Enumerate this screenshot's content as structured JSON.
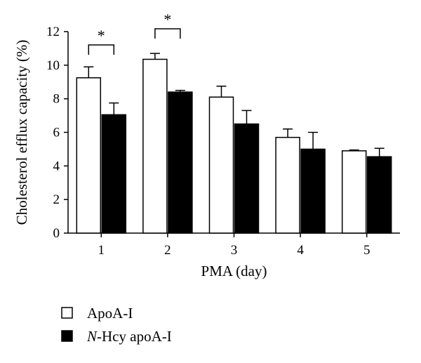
{
  "chart_data": {
    "type": "bar",
    "categories": [
      "1",
      "2",
      "3",
      "4",
      "5"
    ],
    "series": [
      {
        "name": "ApoA-I",
        "values": [
          9.25,
          10.35,
          8.1,
          5.7,
          4.9
        ],
        "errors": [
          0.65,
          0.35,
          0.65,
          0.5,
          0.05
        ],
        "color": "#ffffff"
      },
      {
        "name": "apoA-I",
        "name_prefix": "N",
        "name_joiner": "-Hcy ",
        "values": [
          7.05,
          8.4,
          6.5,
          5.0,
          4.55
        ],
        "errors": [
          0.7,
          0.1,
          0.8,
          1.0,
          0.5
        ],
        "color": "#000000"
      }
    ],
    "xlabel": "PMA (day)",
    "ylabel": "Cholesterol efflux capacity (%)",
    "ylim": [
      0,
      12
    ],
    "yticks": [
      "0",
      "2",
      "4",
      "6",
      "8",
      "10",
      "12"
    ],
    "grid": false,
    "legend": "bottom-left",
    "significance": [
      {
        "category_index": 0,
        "label": "*"
      },
      {
        "category_index": 1,
        "label": "*"
      }
    ]
  }
}
